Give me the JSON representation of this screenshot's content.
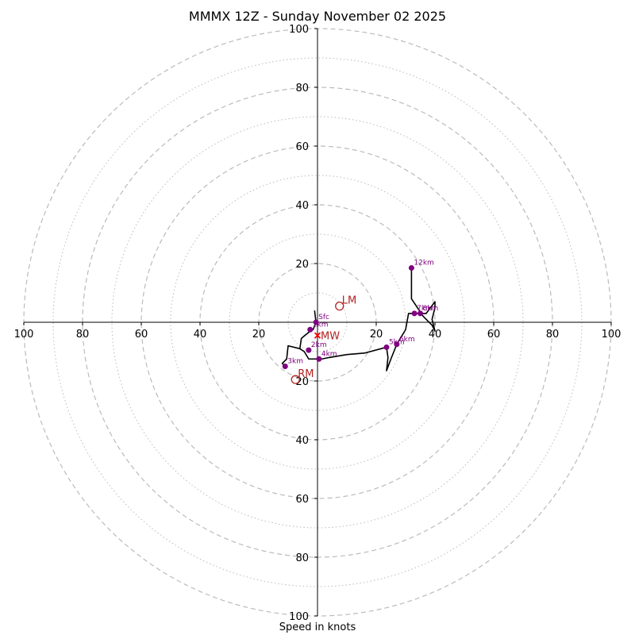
{
  "chart_data": {
    "type": "hodograph",
    "title": "MMMX 12Z - Sunday November 02 2025",
    "xlabel": "Speed in knots",
    "ring_range": [
      0,
      100
    ],
    "ring_step_major": 20,
    "ring_step_minor": 10,
    "tick_labels": [
      "100",
      "80",
      "60",
      "40",
      "20",
      "20",
      "40",
      "60",
      "80",
      "100"
    ],
    "tick_values": [
      -100,
      -80,
      -60,
      -40,
      -20,
      20,
      40,
      60,
      80,
      100
    ],
    "colors": {
      "trace": "#000000",
      "markers": "#800080",
      "storm": "#b22222",
      "mean_wind": "#ff0000",
      "grid": "#bbbbbb"
    },
    "trace": [
      [
        -1,
        4
      ],
      [
        -0.5,
        0
      ],
      [
        -1.5,
        -2.5
      ],
      [
        -2.5,
        -3
      ],
      [
        -5.5,
        -5.5
      ],
      [
        -6,
        -9
      ],
      [
        -4.5,
        -10
      ],
      [
        -3,
        -12.5
      ],
      [
        -1,
        -12.5
      ],
      [
        0.5,
        -12.5
      ],
      [
        1.5,
        -12.5
      ],
      [
        4,
        -12
      ],
      [
        10,
        -11
      ],
      [
        16,
        -10.5
      ],
      [
        23.5,
        -8.5
      ],
      [
        24,
        -12
      ],
      [
        23.5,
        -16.5
      ],
      [
        25,
        -12.5
      ],
      [
        27,
        -7.5
      ],
      [
        30,
        -2.5
      ],
      [
        31,
        3
      ],
      [
        33,
        3
      ],
      [
        35,
        3
      ],
      [
        37,
        3
      ],
      [
        40,
        7
      ],
      [
        40,
        5
      ],
      [
        39,
        1
      ],
      [
        40,
        -3
      ],
      [
        39,
        -1
      ],
      [
        36,
        2
      ],
      [
        32,
        8
      ],
      [
        32,
        18.5
      ]
    ],
    "kinks": [
      [
        -6,
        -9
      ],
      [
        -10,
        -8
      ],
      [
        -10.5,
        -12.5
      ],
      [
        -12,
        -14
      ],
      [
        -11,
        -15
      ]
    ],
    "levels": [
      {
        "label": "Sfc",
        "u": -0.5,
        "v": 0
      },
      {
        "label": "1km",
        "u": -2.5,
        "v": -2.5
      },
      {
        "label": "2km",
        "u": -3,
        "v": -9.5
      },
      {
        "label": "3km",
        "u": -11,
        "v": -15
      },
      {
        "label": "4km",
        "u": 0.5,
        "v": -12.5
      },
      {
        "label": "5km",
        "u": 23.5,
        "v": -8.5
      },
      {
        "label": "6km",
        "u": 27,
        "v": -7.5
      },
      {
        "label": "7km",
        "u": 33,
        "v": 3
      },
      {
        "label": "8km",
        "u": 35,
        "v": 3
      },
      {
        "label": "12km",
        "u": 32,
        "v": 18.5
      }
    ],
    "storm_motion": [
      {
        "label": "LM",
        "u": 7.5,
        "v": 5.5
      },
      {
        "label": "RM",
        "u": -7.5,
        "v": -19.5
      }
    ],
    "mean_wind": {
      "label": "MW",
      "u": 0,
      "v": -4.5
    }
  }
}
